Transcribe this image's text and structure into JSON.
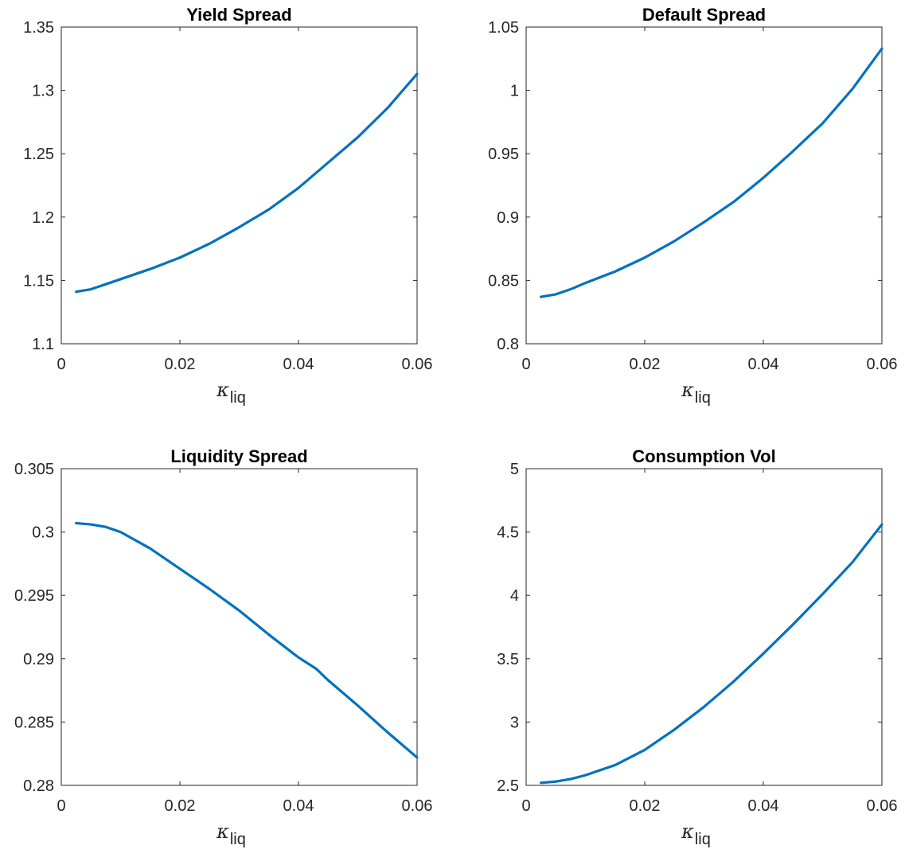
{
  "figure": {
    "line_color": "#0072BD"
  },
  "chart_data": [
    {
      "type": "line",
      "title": "Yield Spread",
      "xlabel": "κ",
      "xlabel_sub": "liq",
      "xlim": [
        0,
        0.06
      ],
      "ylim": [
        1.1,
        1.35
      ],
      "xticks": [
        0,
        0.02,
        0.04,
        0.06
      ],
      "xtick_labels": [
        "0",
        "0.02",
        "0.04",
        "0.06"
      ],
      "yticks": [
        1.1,
        1.15,
        1.2,
        1.25,
        1.3,
        1.35
      ],
      "ytick_labels": [
        "1.1",
        "1.15",
        "1.2",
        "1.25",
        "1.3",
        "1.35"
      ],
      "grid": false,
      "series": [
        {
          "x": [
            0.0025,
            0.005,
            0.0075,
            0.01,
            0.015,
            0.02,
            0.025,
            0.03,
            0.035,
            0.04,
            0.045,
            0.05,
            0.055,
            0.06
          ],
          "y": [
            1.141,
            1.143,
            1.147,
            1.151,
            1.159,
            1.168,
            1.179,
            1.192,
            1.206,
            1.223,
            1.243,
            1.263,
            1.286,
            1.313
          ]
        }
      ]
    },
    {
      "type": "line",
      "title": "Default Spread",
      "xlabel": "κ",
      "xlabel_sub": "liq",
      "xlim": [
        0,
        0.06
      ],
      "ylim": [
        0.8,
        1.05
      ],
      "xticks": [
        0,
        0.02,
        0.04,
        0.06
      ],
      "xtick_labels": [
        "0",
        "0.02",
        "0.04",
        "0.06"
      ],
      "yticks": [
        0.8,
        0.85,
        0.9,
        0.95,
        1.0,
        1.05
      ],
      "ytick_labels": [
        "0.8",
        "0.85",
        "0.9",
        "0.95",
        "1",
        "1.05"
      ],
      "grid": false,
      "series": [
        {
          "x": [
            0.0025,
            0.005,
            0.0075,
            0.01,
            0.015,
            0.02,
            0.025,
            0.03,
            0.035,
            0.04,
            0.045,
            0.05,
            0.055,
            0.06
          ],
          "y": [
            0.837,
            0.839,
            0.843,
            0.848,
            0.857,
            0.868,
            0.881,
            0.896,
            0.912,
            0.931,
            0.952,
            0.974,
            1.001,
            1.033
          ]
        }
      ]
    },
    {
      "type": "line",
      "title": "Liquidity Spread",
      "xlabel": "κ",
      "xlabel_sub": "liq",
      "xlim": [
        0,
        0.06
      ],
      "ylim": [
        0.28,
        0.305
      ],
      "xticks": [
        0,
        0.02,
        0.04,
        0.06
      ],
      "xtick_labels": [
        "0",
        "0.02",
        "0.04",
        "0.06"
      ],
      "yticks": [
        0.28,
        0.285,
        0.29,
        0.295,
        0.3,
        0.305
      ],
      "ytick_labels": [
        "0.28",
        "0.285",
        "0.29",
        "0.295",
        "0.3",
        "0.305"
      ],
      "grid": false,
      "series": [
        {
          "x": [
            0.0025,
            0.005,
            0.0075,
            0.01,
            0.015,
            0.02,
            0.025,
            0.03,
            0.035,
            0.04,
            0.043,
            0.045,
            0.05,
            0.055,
            0.06
          ],
          "y": [
            0.3007,
            0.3006,
            0.3004,
            0.3,
            0.2987,
            0.2971,
            0.2955,
            0.2938,
            0.2919,
            0.2901,
            0.2892,
            0.2883,
            0.2863,
            0.2842,
            0.2822
          ]
        }
      ]
    },
    {
      "type": "line",
      "title": "Consumption Vol",
      "xlabel": "κ",
      "xlabel_sub": "liq",
      "xlim": [
        0,
        0.06
      ],
      "ylim": [
        2.5,
        5
      ],
      "xticks": [
        0,
        0.02,
        0.04,
        0.06
      ],
      "xtick_labels": [
        "0",
        "0.02",
        "0.04",
        "0.06"
      ],
      "yticks": [
        2.5,
        3,
        3.5,
        4,
        4.5,
        5
      ],
      "ytick_labels": [
        "2.5",
        "3",
        "3.5",
        "4",
        "4.5",
        "5"
      ],
      "grid": false,
      "series": [
        {
          "x": [
            0.0025,
            0.005,
            0.0075,
            0.01,
            0.015,
            0.02,
            0.025,
            0.03,
            0.035,
            0.04,
            0.045,
            0.05,
            0.055,
            0.06
          ],
          "y": [
            2.52,
            2.53,
            2.55,
            2.58,
            2.66,
            2.78,
            2.94,
            3.12,
            3.32,
            3.54,
            3.77,
            4.01,
            4.26,
            4.56
          ]
        }
      ]
    }
  ]
}
